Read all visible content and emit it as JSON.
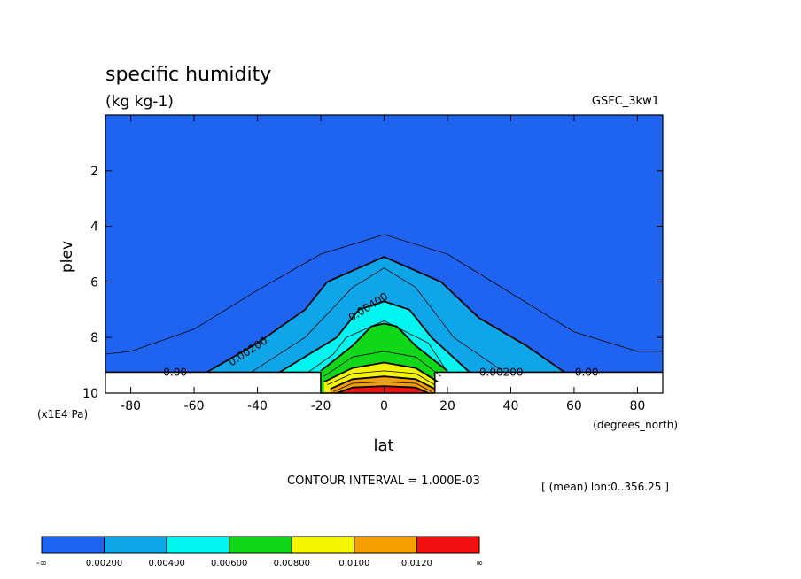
{
  "chart_data": {
    "type": "contour",
    "title": "specific humidity",
    "subtitle": "(kg kg-1)",
    "dataset": "GSFC_3kw1",
    "xlabel": "lat",
    "x_units": "(degrees_north)",
    "ylabel": "plev",
    "y_units": "(x1E4 Pa)",
    "xlim": [
      -88,
      88
    ],
    "ylim": [
      10,
      0
    ],
    "x_ticks": [
      "-80",
      "-60",
      "-40",
      "-20",
      "0",
      "20",
      "40",
      "60",
      "80"
    ],
    "y_ticks": [
      "2",
      "4",
      "6",
      "8",
      "10"
    ],
    "contour_interval_text": "CONTOUR INTERVAL = 1.000E-03",
    "mean_text": "[ (mean) lon:0..356.25 ]",
    "contour_labels": [
      "0.00",
      "0.00200",
      "0.00400",
      "0.00200",
      "0.00"
    ],
    "legend_labels": [
      "-∞",
      "0.00200",
      "0.00400",
      "0.00600",
      "0.00800",
      "0.0100",
      "0.0120",
      "∞"
    ],
    "levels": [
      0.002,
      0.004,
      0.006,
      0.008,
      0.01,
      0.012
    ],
    "colors": [
      "#1e64f0",
      "#0ea5e9",
      "#00f5f0",
      "#10d818",
      "#f5f500",
      "#f5a000",
      "#f01010"
    ],
    "surface_level": 9.25,
    "contours": [
      {
        "level": 0.001,
        "points": [
          [
            -88,
            8.6
          ],
          [
            -80,
            8.5
          ],
          [
            -60,
            7.7
          ],
          [
            -40,
            6.3
          ],
          [
            -20,
            5.0
          ],
          [
            0,
            4.3
          ],
          [
            20,
            5.0
          ],
          [
            40,
            6.4
          ],
          [
            60,
            7.8
          ],
          [
            80,
            8.5
          ],
          [
            88,
            8.5
          ]
        ]
      },
      {
        "level": 0.002,
        "points": [
          [
            -56,
            9.25
          ],
          [
            -40,
            8.2
          ],
          [
            -25,
            7.0
          ],
          [
            -18,
            6.0
          ],
          [
            0,
            5.1
          ],
          [
            18,
            6.0
          ],
          [
            30,
            7.3
          ],
          [
            45,
            8.3
          ],
          [
            57,
            9.25
          ]
        ]
      },
      {
        "level": 0.003,
        "points": [
          [
            -42,
            9.25
          ],
          [
            -25,
            8.0
          ],
          [
            -10,
            6.2
          ],
          [
            0,
            5.5
          ],
          [
            10,
            6.2
          ],
          [
            22,
            8.0
          ],
          [
            38,
            9.25
          ]
        ]
      },
      {
        "level": 0.004,
        "points": [
          [
            -33,
            9.25
          ],
          [
            -15,
            8.0
          ],
          [
            -8,
            7.0
          ],
          [
            0,
            6.7
          ],
          [
            8,
            7.0
          ],
          [
            15,
            8.0
          ],
          [
            27,
            9.25
          ]
        ]
      },
      {
        "level": 0.005,
        "points": [
          [
            -24,
            9.25
          ],
          [
            -16,
            8.6
          ],
          [
            -12,
            8.0
          ],
          [
            0,
            7.4
          ],
          [
            14,
            8.2
          ],
          [
            20,
            9.25
          ]
        ]
      },
      {
        "level": 0.006,
        "points": [
          [
            -20,
            9.2
          ],
          [
            -10,
            8.3
          ],
          [
            -4,
            7.6
          ],
          [
            0,
            7.5
          ],
          [
            4,
            7.6
          ],
          [
            10,
            8.3
          ],
          [
            20,
            9.2
          ]
        ]
      },
      {
        "level": 0.007,
        "points": [
          [
            -19,
            9.4
          ],
          [
            -10,
            8.7
          ],
          [
            0,
            8.5
          ],
          [
            10,
            8.7
          ],
          [
            18,
            9.4
          ]
        ]
      },
      {
        "level": 0.008,
        "points": [
          [
            -19,
            9.6
          ],
          [
            -10,
            9.1
          ],
          [
            0,
            8.9
          ],
          [
            10,
            9.1
          ],
          [
            17,
            9.6
          ]
        ]
      },
      {
        "level": 0.009,
        "points": [
          [
            -18,
            9.7
          ],
          [
            -10,
            9.3
          ],
          [
            0,
            9.2
          ],
          [
            10,
            9.3
          ],
          [
            16,
            9.7
          ]
        ]
      },
      {
        "level": 0.01,
        "points": [
          [
            -17,
            9.85
          ],
          [
            -10,
            9.5
          ],
          [
            0,
            9.4
          ],
          [
            10,
            9.5
          ],
          [
            16,
            9.85
          ]
        ]
      },
      {
        "level": 0.011,
        "points": [
          [
            -16,
            9.95
          ],
          [
            -10,
            9.65
          ],
          [
            0,
            9.6
          ],
          [
            10,
            9.65
          ],
          [
            15,
            9.95
          ]
        ]
      },
      {
        "level": 0.012,
        "points": [
          [
            -15,
            10.0
          ],
          [
            -10,
            9.8
          ],
          [
            0,
            9.75
          ],
          [
            10,
            9.8
          ],
          [
            14,
            10.0
          ]
        ]
      }
    ],
    "fills": [
      {
        "level": 0.002,
        "color": "#0ea5e9",
        "points": [
          [
            -56,
            9.25
          ],
          [
            -40,
            8.2
          ],
          [
            -25,
            7.0
          ],
          [
            -18,
            6.0
          ],
          [
            0,
            5.1
          ],
          [
            18,
            6.0
          ],
          [
            30,
            7.3
          ],
          [
            45,
            8.3
          ],
          [
            57,
            9.25
          ]
        ]
      },
      {
        "level": 0.004,
        "color": "#00f5f0",
        "points": [
          [
            -33,
            9.25
          ],
          [
            -15,
            8.0
          ],
          [
            -8,
            7.0
          ],
          [
            0,
            6.7
          ],
          [
            8,
            7.0
          ],
          [
            15,
            8.0
          ],
          [
            27,
            9.25
          ]
        ]
      },
      {
        "level": 0.006,
        "color": "#10d818",
        "points": [
          [
            -20,
            9.25
          ],
          [
            -10,
            8.3
          ],
          [
            -4,
            7.6
          ],
          [
            0,
            7.5
          ],
          [
            4,
            7.6
          ],
          [
            10,
            8.3
          ],
          [
            20,
            9.25
          ],
          [
            16,
            10
          ],
          [
            -20,
            10
          ]
        ]
      },
      {
        "level": 0.008,
        "color": "#f5f500",
        "points": [
          [
            -19,
            9.6
          ],
          [
            -10,
            9.1
          ],
          [
            0,
            8.9
          ],
          [
            10,
            9.1
          ],
          [
            17,
            9.6
          ],
          [
            16,
            10
          ],
          [
            -19,
            10
          ]
        ]
      },
      {
        "level": 0.01,
        "color": "#f5a000",
        "points": [
          [
            -17,
            9.85
          ],
          [
            -10,
            9.5
          ],
          [
            0,
            9.4
          ],
          [
            10,
            9.5
          ],
          [
            16,
            9.85
          ],
          [
            16,
            10
          ],
          [
            -17,
            10
          ]
        ]
      },
      {
        "level": 0.012,
        "color": "#f01010",
        "points": [
          [
            -15,
            10.0
          ],
          [
            -10,
            9.8
          ],
          [
            0,
            9.75
          ],
          [
            10,
            9.8
          ],
          [
            14,
            10.0
          ]
        ]
      }
    ],
    "label_positions": [
      {
        "text_index": 0,
        "x": -66,
        "y": 9.25,
        "angle": 0
      },
      {
        "text_index": 1,
        "x": -43,
        "y": 8.5,
        "angle": -33
      },
      {
        "text_index": 2,
        "x": -5,
        "y": 6.9,
        "angle": -32
      },
      {
        "text_index": 3,
        "x": 37,
        "y": 9.25,
        "angle": 0
      },
      {
        "text_index": 4,
        "x": 64,
        "y": 9.25,
        "angle": 0
      }
    ],
    "mountain": [
      [
        -20,
        9.25
      ],
      [
        -20,
        10
      ],
      [
        16,
        10
      ],
      [
        16,
        9.25
      ]
    ]
  }
}
